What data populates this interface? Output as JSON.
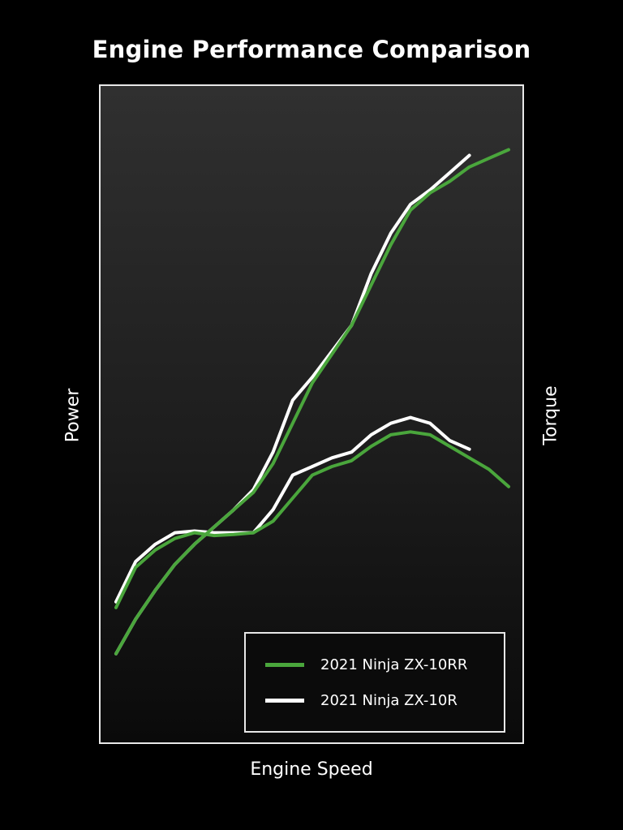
{
  "chart_data": {
    "type": "line",
    "title": "Engine Performance Comparison",
    "xlabel": "Engine Speed",
    "ylabel_left": "Power",
    "ylabel_right": "Torque",
    "xlim": [
      0,
      100
    ],
    "ylim": [
      0,
      100
    ],
    "grid": false,
    "legend_position": "bottom-right",
    "colors": {
      "zx10rr": "#4aa63c",
      "zx10r": "#ffffff"
    },
    "series": [
      {
        "name": "2021 Ninja ZX-10RR",
        "key": "zx10rr",
        "metric": "Torque",
        "x": [
          0,
          5,
          10,
          15,
          20,
          25,
          30,
          35,
          40,
          45,
          50,
          55,
          60,
          65,
          70,
          75,
          80,
          85,
          90,
          95,
          100
        ],
        "y": [
          21,
          28,
          31,
          33,
          34,
          33.5,
          33.7,
          34,
          36,
          40,
          44,
          45.5,
          46.5,
          49,
          51,
          51.5,
          51,
          49,
          47,
          45,
          42
        ]
      },
      {
        "name": "2021 Ninja ZX-10R",
        "key": "zx10r",
        "metric": "Torque",
        "x": [
          0,
          5,
          10,
          15,
          20,
          25,
          30,
          35,
          40,
          45,
          50,
          55,
          60,
          65,
          70,
          75,
          80,
          85,
          90
        ],
        "y": [
          22,
          29,
          32,
          34,
          34.3,
          34,
          34,
          34,
          38,
          44,
          45.5,
          47,
          48,
          51,
          53,
          54,
          53,
          50,
          48.5
        ]
      },
      {
        "name": "2021 Ninja ZX-10RR",
        "key": "zx10rr",
        "metric": "Power",
        "x": [
          0,
          5,
          10,
          15,
          20,
          25,
          30,
          35,
          40,
          45,
          50,
          55,
          60,
          65,
          70,
          75,
          80,
          85,
          90,
          95,
          100
        ],
        "y": [
          13,
          19,
          24,
          28.5,
          32,
          35,
          38,
          41,
          46,
          53,
          60,
          65,
          70,
          77,
          84,
          90,
          93,
          95,
          97.5,
          99,
          100.5
        ]
      },
      {
        "name": "2021 Ninja ZX-10R",
        "key": "zx10r",
        "metric": "Power",
        "x": [
          0,
          5,
          10,
          15,
          20,
          25,
          30,
          35,
          40,
          45,
          50,
          55,
          60,
          65,
          70,
          75,
          80,
          85,
          90
        ],
        "y": [
          13,
          19,
          24,
          28.5,
          32,
          35,
          38,
          41.5,
          48,
          57,
          61,
          65.5,
          70,
          79,
          86,
          91,
          93.5,
          96.5,
          99.5
        ]
      }
    ]
  },
  "legend": {
    "items": [
      {
        "label": "2021 Ninja ZX-10RR",
        "color": "#4aa63c"
      },
      {
        "label": "2021 Ninja ZX-10R",
        "color": "#ffffff"
      }
    ]
  }
}
